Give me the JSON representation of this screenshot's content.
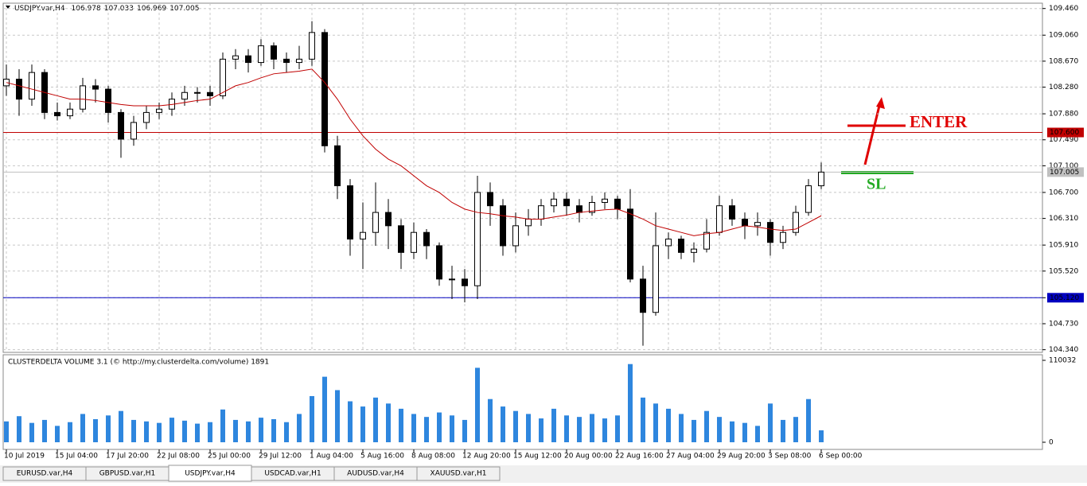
{
  "chart_data": [
    {
      "type": "candlestick",
      "symbol": "USDJPY.var,H4",
      "ohlc": [
        106.978,
        107.033,
        106.969,
        107.005
      ],
      "ylim": [
        104.3,
        109.54
      ],
      "yticks": [
        {
          "value": 109.46,
          "label": "109.460"
        },
        {
          "value": 109.06,
          "label": "109.060"
        },
        {
          "value": 108.67,
          "label": "108.670"
        },
        {
          "value": 108.28,
          "label": "108.280"
        },
        {
          "value": 107.88,
          "label": "107.880"
        },
        {
          "value": 107.49,
          "label": "107.490"
        },
        {
          "value": 107.1,
          "label": "107.100"
        },
        {
          "value": 106.7,
          "label": "106.700"
        },
        {
          "value": 106.31,
          "label": "106.310"
        },
        {
          "value": 105.91,
          "label": "105.910"
        },
        {
          "value": 105.52,
          "label": "105.520"
        },
        {
          "value": 105.12,
          "label": "105.120"
        },
        {
          "value": 104.73,
          "label": "104.730"
        },
        {
          "value": 104.34,
          "label": "104.340"
        }
      ],
      "grid": true,
      "up_color": "#ffffff",
      "down_color": "#000000",
      "ma_color": "#c00000",
      "open": [
        108.3,
        108.4,
        108.1,
        108.5,
        107.9,
        107.85,
        107.95,
        108.3,
        108.25,
        107.9,
        107.5,
        107.75,
        107.9,
        107.95,
        108.1,
        108.2,
        108.2,
        108.15,
        108.7,
        108.75,
        108.65,
        108.9,
        108.7,
        108.65,
        108.7,
        109.1,
        107.4,
        106.8,
        106.0,
        106.1,
        106.4,
        106.2,
        105.8,
        106.1,
        105.9,
        105.4,
        105.4,
        105.3,
        106.7,
        106.5,
        105.9,
        106.2,
        106.3,
        106.5,
        106.6,
        106.5,
        106.4,
        106.55,
        106.6,
        106.45,
        105.4,
        104.9,
        105.9,
        106.0,
        105.8,
        105.85,
        106.1,
        106.5,
        106.3,
        106.2,
        106.25,
        105.95,
        106.1,
        106.4,
        106.8
      ],
      "high": [
        108.62,
        108.55,
        108.62,
        108.55,
        108.05,
        108.05,
        108.42,
        108.4,
        108.3,
        107.95,
        107.85,
        108.0,
        108.05,
        108.2,
        108.3,
        108.28,
        108.3,
        108.8,
        108.85,
        108.85,
        109.0,
        108.95,
        108.8,
        108.9,
        109.27,
        109.15,
        107.55,
        106.9,
        106.55,
        106.85,
        106.6,
        106.3,
        106.25,
        106.15,
        105.95,
        105.6,
        105.55,
        106.95,
        106.85,
        106.6,
        106.4,
        106.45,
        106.6,
        106.7,
        106.7,
        106.6,
        106.65,
        106.7,
        106.65,
        106.75,
        105.6,
        106.4,
        106.1,
        106.05,
        105.95,
        106.3,
        106.65,
        106.6,
        106.4,
        106.4,
        106.3,
        106.2,
        106.5,
        106.9,
        107.15
      ],
      "low": [
        108.15,
        107.85,
        108.0,
        107.8,
        107.78,
        107.8,
        107.9,
        108.05,
        107.75,
        107.22,
        107.4,
        107.65,
        107.8,
        107.85,
        108.0,
        108.05,
        108.0,
        108.1,
        108.55,
        108.5,
        108.6,
        108.55,
        108.5,
        108.55,
        108.6,
        107.3,
        106.6,
        105.75,
        105.55,
        105.9,
        105.85,
        105.55,
        105.7,
        105.7,
        105.3,
        105.1,
        105.05,
        105.1,
        106.2,
        105.75,
        105.8,
        106.05,
        106.2,
        106.4,
        106.35,
        106.25,
        106.35,
        106.45,
        106.3,
        105.35,
        104.4,
        104.85,
        105.7,
        105.7,
        105.65,
        105.8,
        106.05,
        106.2,
        106.0,
        106.05,
        105.75,
        105.85,
        106.05,
        106.35,
        106.75
      ],
      "close": [
        108.4,
        108.1,
        108.5,
        107.9,
        107.85,
        107.95,
        108.3,
        108.25,
        107.9,
        107.5,
        107.75,
        107.9,
        107.95,
        108.1,
        108.2,
        108.2,
        108.15,
        108.7,
        108.75,
        108.65,
        108.9,
        108.7,
        108.65,
        108.7,
        109.1,
        107.4,
        106.8,
        106.0,
        106.1,
        106.4,
        106.2,
        105.8,
        106.1,
        105.9,
        105.4,
        105.4,
        105.3,
        106.7,
        106.5,
        105.9,
        106.2,
        106.3,
        106.5,
        106.6,
        106.5,
        106.4,
        106.55,
        106.6,
        106.45,
        105.4,
        104.9,
        105.9,
        106.0,
        105.8,
        105.85,
        106.1,
        106.5,
        106.3,
        106.2,
        106.25,
        105.95,
        106.1,
        106.4,
        106.8,
        107.005
      ],
      "ma": [
        108.35,
        108.3,
        108.25,
        108.2,
        108.15,
        108.1,
        108.1,
        108.08,
        108.05,
        108.02,
        108.0,
        108.0,
        108.0,
        108.02,
        108.05,
        108.08,
        108.1,
        108.2,
        108.3,
        108.35,
        108.42,
        108.48,
        108.5,
        108.52,
        108.55,
        108.35,
        108.1,
        107.8,
        107.55,
        107.35,
        107.2,
        107.1,
        106.95,
        106.8,
        106.7,
        106.55,
        106.45,
        106.4,
        106.38,
        106.35,
        106.33,
        106.3,
        106.3,
        106.33,
        106.36,
        106.4,
        106.42,
        106.44,
        106.45,
        106.38,
        106.3,
        106.2,
        106.15,
        106.1,
        106.05,
        106.08,
        106.1,
        106.15,
        106.2,
        106.18,
        106.15,
        106.13,
        106.15,
        106.25,
        106.35
      ],
      "levels": [
        {
          "value": 107.6,
          "label": "107.600",
          "color": "#c00000"
        },
        {
          "value": 107.005,
          "label": "107.005",
          "color": "#c0c0c0"
        },
        {
          "value": 105.12,
          "label": "105.120",
          "color": "#0000c0"
        }
      ],
      "annotations": [
        "ENTER",
        "SL"
      ]
    },
    {
      "type": "bar",
      "title": "CLUSTERDELTA VOLUME 3.1 (© http://my.clusterdelta.com/volume) 1891",
      "color": "#2e86de",
      "ylim": [
        0,
        110032
      ],
      "yticks": [
        0,
        110032
      ],
      "categories": [
        "10 Jul 2019",
        null,
        null,
        null,
        "15 Jul 04:00",
        null,
        null,
        null,
        "17 Jul 20:00",
        null,
        null,
        null,
        "22 Jul 08:00",
        null,
        null,
        null,
        "25 Jul 00:00",
        null,
        null,
        null,
        "29 Jul 12:00",
        null,
        null,
        null,
        "1 Aug 04:00",
        null,
        null,
        null,
        "5 Aug 16:00",
        null,
        null,
        null,
        "8 Aug 08:00",
        null,
        null,
        null,
        "12 Aug 20:00",
        null,
        null,
        null,
        "15 Aug 12:00",
        null,
        null,
        null,
        "20 Aug 00:00",
        null,
        null,
        null,
        "22 Aug 16:00",
        null,
        null,
        null,
        "27 Aug 04:00",
        null,
        null,
        null,
        "29 Aug 20:00",
        null,
        null,
        null,
        "3 Sep 08:00",
        null,
        null,
        null,
        "6 Sep 00:00"
      ],
      "values": [
        28000,
        35000,
        26000,
        30000,
        22000,
        27000,
        38000,
        31000,
        36000,
        42000,
        30000,
        28000,
        26000,
        33000,
        29000,
        25000,
        27000,
        44000,
        30000,
        28000,
        33000,
        31000,
        27000,
        38000,
        62000,
        88000,
        70000,
        55000,
        48000,
        60000,
        52000,
        45000,
        38000,
        34000,
        40000,
        36000,
        30000,
        100000,
        58000,
        48000,
        42000,
        38000,
        32000,
        45000,
        36000,
        34000,
        38000,
        32000,
        36000,
        105000,
        60000,
        52000,
        45000,
        38000,
        30000,
        42000,
        34000,
        28000,
        26000,
        22000,
        52000,
        30000,
        34000,
        58000,
        16000
      ]
    }
  ],
  "tabs": [
    "EURUSD.var,H4",
    "GBPUSD.var,H1",
    "USDJPY.var,H4",
    "USDCAD.var,H1",
    "AUDUSD.var,H4",
    "XAUUSD.var,H1"
  ]
}
